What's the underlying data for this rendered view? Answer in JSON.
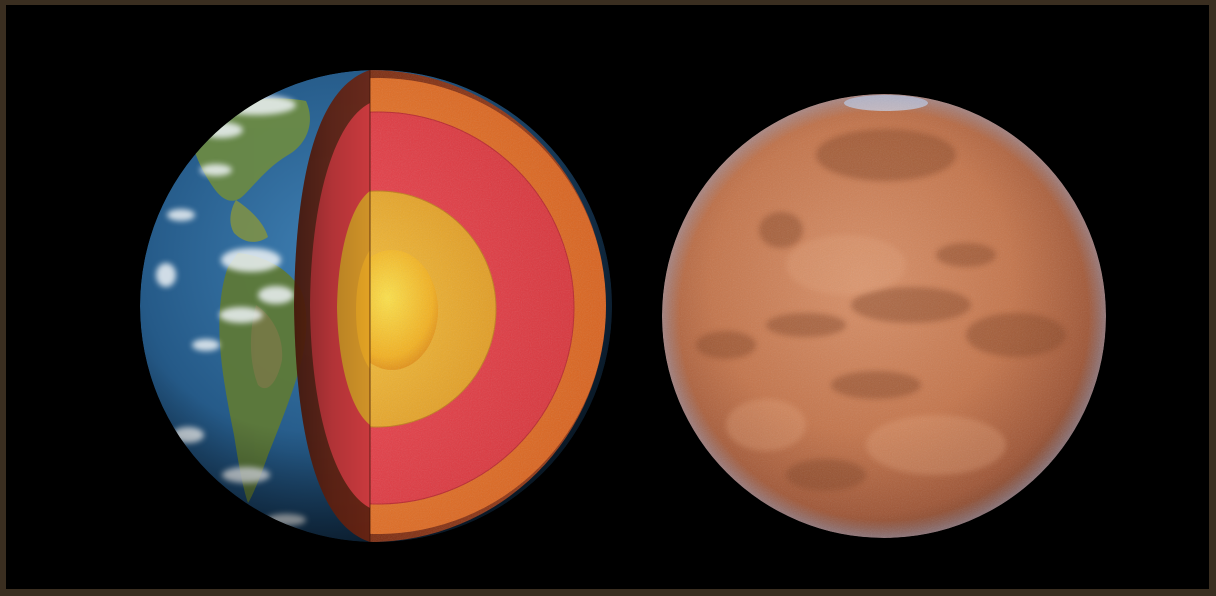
{
  "image": {
    "subject": "earth-cutaway-and-mars",
    "colors": {
      "frame": "#3a2e20",
      "space": "#000000",
      "earth_ocean": "#2b5f8e",
      "earth_land": "#5d7a3a",
      "clouds": "#e8eef2",
      "crust": "#8a2e12",
      "upper_mantle": "#e8762a",
      "lower_mantle": "#e8404a",
      "outer_core": "#f0b42c",
      "inner_core": "#f7c81e",
      "mars_surface": "#c9774a",
      "mars_dark": "#8e4a2c"
    }
  }
}
